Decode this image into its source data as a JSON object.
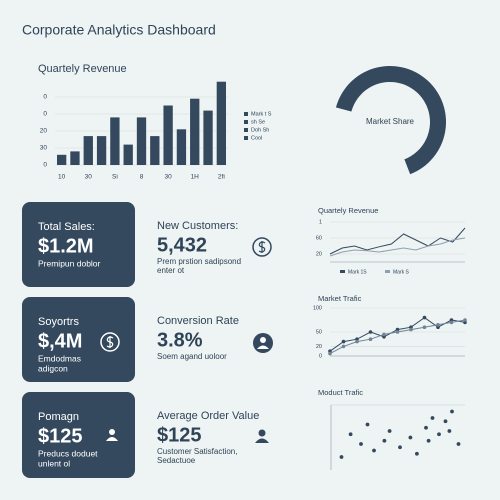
{
  "header": {
    "title": "Corporate Analytics Dashboard"
  },
  "cards": [
    {
      "title": "Total Sales:",
      "value": "$1.2M",
      "note": [
        "Premipun doblor"
      ]
    },
    {
      "title": "Soyortrs",
      "value": "$,4M",
      "note": [
        "Emdodmas",
        "adigcon"
      ]
    },
    {
      "title": "Pomagn",
      "value": "$125",
      "note": [
        "Preducs doduet",
        "unlent ol"
      ]
    }
  ],
  "metrics": [
    {
      "title": "New Customers:",
      "value": "5,432",
      "note": [
        "Prem prstion sadipsond",
        "enter ot"
      ]
    },
    {
      "title": "Conversion Rate",
      "value": "3.8%",
      "note": [
        "Soem agand uoloor"
      ]
    },
    {
      "title": "Average Order Value",
      "value": "$125",
      "note": [
        "Customer Satisfaction,",
        "Sedactuoe"
      ]
    }
  ],
  "chart_data": [
    {
      "type": "bar",
      "title": "Quartely Revenue",
      "color": "#34495e",
      "categories": [
        "10",
        null,
        "30",
        null,
        "Si",
        null,
        "8",
        null,
        "30",
        null,
        "1H",
        null,
        "2fi"
      ],
      "values": [
        6,
        8,
        17,
        17,
        28,
        12,
        28,
        17,
        35,
        21,
        39,
        32,
        49
      ],
      "ylim": [
        0,
        50
      ],
      "yticks": [
        {
          "value": 0,
          "label": "0"
        },
        {
          "value": 10,
          "label": "30"
        },
        20,
        {
          "value": 30,
          "label": "0"
        },
        {
          "value": 40,
          "label": "0"
        }
      ],
      "legend": [
        "Mark t S",
        "sh Se",
        "Doh Sh",
        "Cool"
      ]
    },
    {
      "type": "pie",
      "title": "Market Share",
      "values": [
        65,
        35
      ],
      "colors": [
        "#34495e",
        "#eef3f3"
      ]
    },
    {
      "type": "line",
      "title": "Quartely Revenue",
      "categories": [
        null,
        null,
        null,
        null,
        null,
        null,
        null,
        null,
        null,
        null,
        null,
        null
      ],
      "ylim": [
        0,
        100
      ],
      "yticks": [
        {
          "value": 100,
          "label": "1"
        },
        60,
        20
      ],
      "series": [
        {
          "name": "Mark 1S",
          "color": "#34495e",
          "values": [
            20,
            35,
            40,
            30,
            38,
            45,
            70,
            55,
            40,
            60,
            50,
            85
          ]
        },
        {
          "name": "Mark S",
          "color": "#8da0b0",
          "values": [
            15,
            25,
            30,
            28,
            25,
            30,
            35,
            30,
            40,
            45,
            55,
            60
          ]
        }
      ]
    },
    {
      "type": "line",
      "title": "Market Trafic",
      "markers": true,
      "categories": [
        null,
        null,
        null,
        null,
        null,
        null,
        null,
        null,
        null,
        null,
        null
      ],
      "ylim": [
        0,
        100
      ],
      "yticks": [
        0,
        20,
        50,
        100
      ],
      "series": [
        {
          "color": "#34495e",
          "values": [
            10,
            30,
            35,
            50,
            40,
            55,
            60,
            80,
            60,
            75,
            70
          ]
        },
        {
          "color": "#6f8496",
          "values": [
            5,
            20,
            30,
            35,
            45,
            50,
            55,
            60,
            65,
            70,
            75
          ]
        }
      ]
    },
    {
      "type": "scatter",
      "title": "Moduct Trafic",
      "color": "#34495e",
      "xlim": [
        0,
        100
      ],
      "ylim": [
        0,
        100
      ],
      "x": [
        5,
        12,
        20,
        25,
        30,
        38,
        42,
        50,
        58,
        63,
        70,
        75,
        80,
        85,
        90,
        95,
        72,
        88
      ],
      "values": [
        20,
        55,
        40,
        70,
        30,
        45,
        60,
        35,
        50,
        25,
        65,
        80,
        55,
        75,
        90,
        40,
        45,
        60
      ]
    }
  ]
}
